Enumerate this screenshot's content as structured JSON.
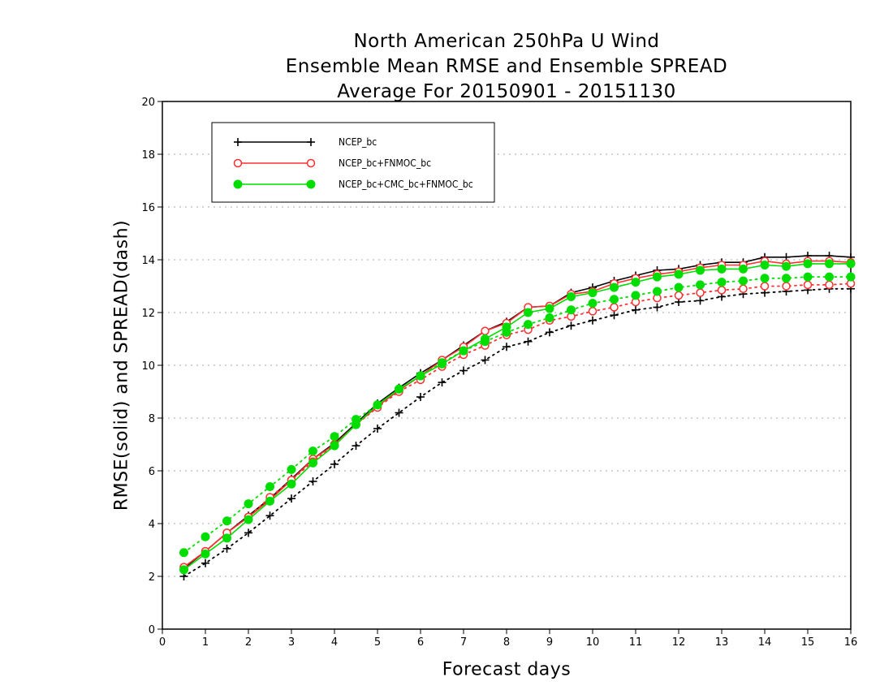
{
  "chart_data": {
    "type": "line",
    "title": [
      "North American 250hPa U Wind",
      "Ensemble Mean RMSE and Ensemble SPREAD",
      "Average For 20150901 - 20151130"
    ],
    "xlabel": "Forecast days",
    "ylabel": "RMSE(solid) and SPREAD(dash)",
    "xlim": [
      0,
      16
    ],
    "ylim": [
      0,
      20
    ],
    "x_ticks": [
      "0",
      "1",
      "2",
      "3",
      "4",
      "5",
      "6",
      "7",
      "8",
      "9",
      "10",
      "11",
      "12",
      "13",
      "14",
      "15",
      "16"
    ],
    "y_ticks": [
      "0",
      "2",
      "4",
      "6",
      "8",
      "10",
      "12",
      "14",
      "16",
      "18",
      "20"
    ],
    "grid": true,
    "legend_position": "top-left",
    "x": [
      0.5,
      1,
      1.5,
      2,
      2.5,
      3,
      3.5,
      4,
      4.5,
      5,
      5.5,
      6,
      6.5,
      7,
      7.5,
      8,
      8.5,
      9,
      9.5,
      10,
      10.5,
      11,
      11.5,
      12,
      12.5,
      13,
      13.5,
      14,
      14.5,
      15,
      15.5,
      16
    ],
    "series": [
      {
        "name": "NCEP_bc",
        "color": "#000000",
        "marker": "plus",
        "rmse": [
          2.3,
          2.95,
          3.65,
          4.3,
          4.95,
          5.7,
          6.45,
          7.05,
          7.8,
          8.55,
          9.15,
          9.7,
          10.2,
          10.75,
          11.3,
          11.65,
          12.2,
          12.25,
          12.75,
          12.95,
          13.2,
          13.4,
          13.6,
          13.65,
          13.8,
          13.9,
          13.9,
          14.1,
          14.1,
          14.15,
          14.15,
          14.1
        ],
        "spread": [
          2.0,
          2.5,
          3.05,
          3.65,
          4.3,
          4.95,
          5.6,
          6.25,
          6.95,
          7.6,
          8.2,
          8.8,
          9.35,
          9.8,
          10.2,
          10.7,
          10.9,
          11.25,
          11.5,
          11.7,
          11.9,
          12.1,
          12.2,
          12.4,
          12.45,
          12.6,
          12.7,
          12.75,
          12.8,
          12.85,
          12.9,
          12.9
        ]
      },
      {
        "name": "NCEP_bc+FNMOC_bc",
        "color": "#ff3030",
        "marker": "open-circle",
        "rmse": [
          2.35,
          2.95,
          3.65,
          4.25,
          4.9,
          5.65,
          6.45,
          7.0,
          7.75,
          8.45,
          9.05,
          9.6,
          10.2,
          10.7,
          11.3,
          11.6,
          12.2,
          12.25,
          12.7,
          12.8,
          13.1,
          13.3,
          13.45,
          13.55,
          13.7,
          13.8,
          13.8,
          13.95,
          13.85,
          13.95,
          13.95,
          13.9
        ],
        "spread": [
          2.35,
          2.95,
          3.65,
          4.25,
          5.0,
          5.65,
          6.35,
          7.0,
          7.75,
          8.4,
          9.0,
          9.45,
          9.95,
          10.4,
          10.75,
          11.15,
          11.35,
          11.7,
          11.85,
          12.05,
          12.2,
          12.4,
          12.55,
          12.65,
          12.75,
          12.85,
          12.9,
          13.0,
          13.0,
          13.05,
          13.05,
          13.1
        ]
      },
      {
        "name": "NCEP_bc+CMC_bc+FNMOC_bc",
        "color": "#00dd00",
        "marker": "filled-circle",
        "rmse": [
          2.25,
          2.85,
          3.45,
          4.15,
          4.85,
          5.5,
          6.3,
          6.95,
          7.75,
          8.5,
          9.1,
          9.6,
          10.05,
          10.55,
          11.0,
          11.45,
          12.0,
          12.15,
          12.6,
          12.75,
          12.95,
          13.15,
          13.35,
          13.45,
          13.6,
          13.65,
          13.65,
          13.8,
          13.75,
          13.85,
          13.85,
          13.85
        ],
        "spread": [
          2.9,
          3.5,
          4.1,
          4.75,
          5.4,
          6.05,
          6.75,
          7.3,
          7.95,
          8.5,
          9.1,
          9.6,
          10.1,
          10.55,
          10.9,
          11.25,
          11.55,
          11.8,
          12.1,
          12.35,
          12.5,
          12.65,
          12.8,
          12.95,
          13.05,
          13.15,
          13.2,
          13.3,
          13.3,
          13.35,
          13.35,
          13.35
        ]
      }
    ]
  }
}
